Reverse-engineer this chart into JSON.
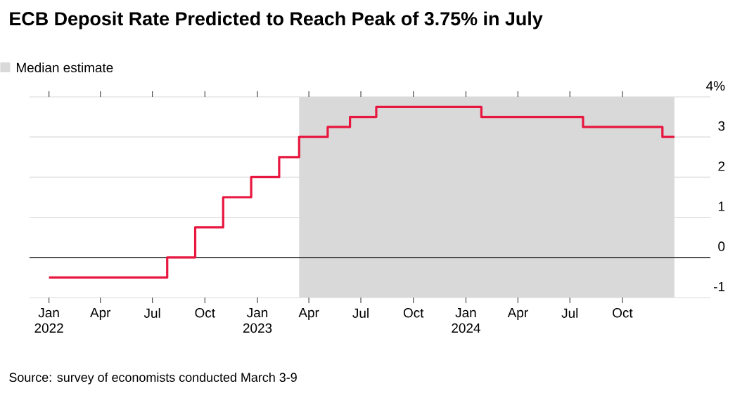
{
  "chart_data": {
    "type": "step",
    "title": "ECB Deposit Rate Predicted to Reach Peak of 3.75% in July",
    "x": [
      "2022-01-01",
      "2022-07-27",
      "2022-09-14",
      "2022-11-02",
      "2022-12-21",
      "2023-02-08",
      "2023-03-15",
      "2023-05-04",
      "2023-06-12",
      "2023-07-28",
      "2024-01-28",
      "2024-07-24",
      "2024-12-10",
      "2024-12-31"
    ],
    "series": [
      {
        "color": "#e8173f",
        "values": [
          -0.5,
          0,
          0.75,
          1.5,
          2,
          2.5,
          3,
          3.25,
          3.5,
          3.75,
          3.5,
          3.25,
          3,
          3
        ]
      }
    ],
    "xlim": [
      "2021-11-28",
      "2025-03-04"
    ],
    "xticks": [
      {
        "value": "2022-01-01",
        "label": "Jan 2022"
      },
      {
        "value": "2022-04-01",
        "label": "Apr"
      },
      {
        "value": "2022-07-01",
        "label": "Jul"
      },
      {
        "value": "2022-10-01",
        "label": "Oct"
      },
      {
        "value": "2023-01-01",
        "label": "Jan 2023"
      },
      {
        "value": "2023-04-01",
        "label": "Apr"
      },
      {
        "value": "2023-07-01",
        "label": "Jul"
      },
      {
        "value": "2023-10-01",
        "label": "Oct"
      },
      {
        "value": "2024-01-01",
        "label": "Jan 2024"
      },
      {
        "value": "2024-04-01",
        "label": "Apr"
      },
      {
        "value": "2024-07-01",
        "label": "Jul"
      },
      {
        "value": "2024-10-01",
        "label": "Oct"
      }
    ],
    "ylim": [
      -1,
      4
    ],
    "yticks": [
      -1,
      0,
      1,
      2,
      3,
      {
        "value": 4,
        "label": "4%"
      }
    ],
    "grid": "y",
    "ref_lines": [
      {
        "axis": "y",
        "value": 0,
        "color": "#000000"
      }
    ],
    "bands": [
      {
        "axis": "x",
        "from": "2023-03-15",
        "to": "2024-12-31",
        "label": "Median estimate",
        "color": "#d9d9d9"
      }
    ],
    "legend": "top left",
    "annotations": [
      "Source: survey of economists conducted March 3-9"
    ]
  }
}
